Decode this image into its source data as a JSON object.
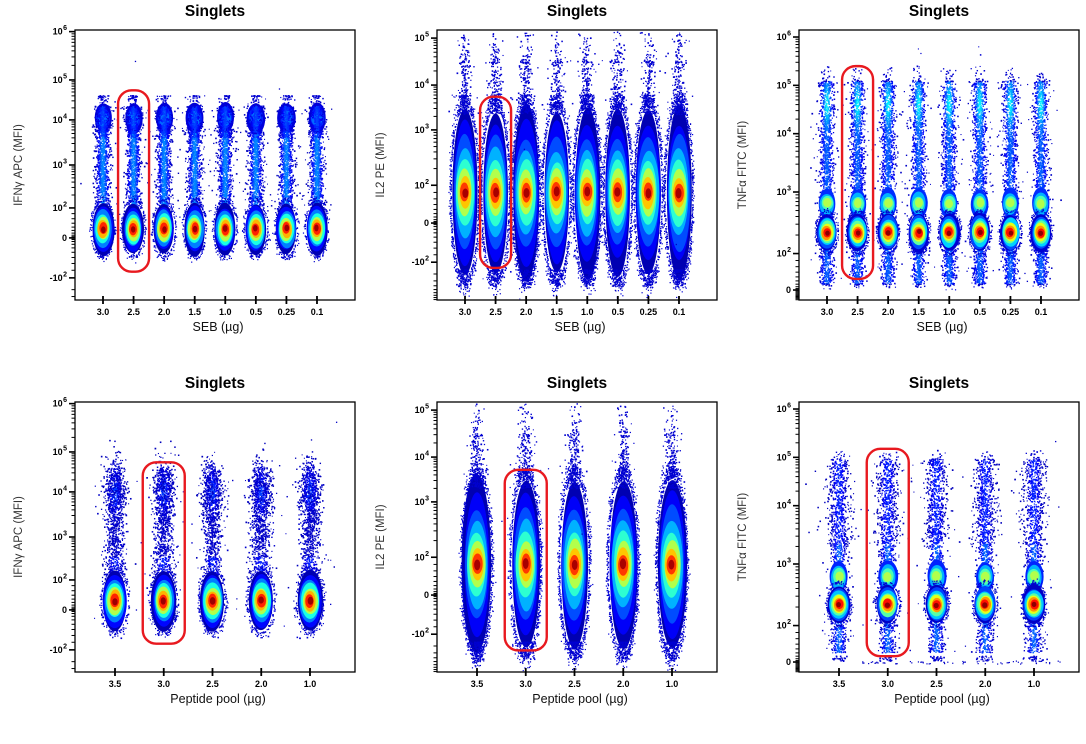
{
  "figure": {
    "background": "#ffffff",
    "plot_type": "flow-cytometry pseudocolor density plots",
    "colormap": "jet",
    "dot_color_low": "#0000c8",
    "gate_color": "#e8191f",
    "repeated_title": "Singlets"
  },
  "chart_data": [
    {
      "id": "top-left",
      "type": "density-scatter",
      "title": "Singlets",
      "xlabel": "SEB (µg)",
      "ylabel": "IFNγ APC (MFI)",
      "x_scale": "categorical",
      "x_ticks": [
        "3.0",
        "2.5",
        "2.0",
        "1.5",
        "1.0",
        "0.5",
        "0.25",
        "0.1"
      ],
      "y_scale": "biexponential",
      "y_ticks": [
        "10^6",
        "10^5",
        "10^4",
        "10^3",
        "10^2",
        "0",
        "-10^2"
      ],
      "y_anchors": [
        [
          1000000,
          0.006
        ],
        [
          100000,
          0.185
        ],
        [
          10000,
          0.333
        ],
        [
          1000,
          0.5
        ],
        [
          100,
          0.659
        ],
        [
          0,
          0.77
        ],
        [
          -100,
          0.918
        ]
      ],
      "gate": {
        "x_tick": "2.5",
        "y_top": 55000,
        "y_bottom": -92
      },
      "population": {
        "profile": "ifng-seb",
        "main_peak_mfi": 55,
        "upper_cluster_mfi": 11000,
        "dense_top": 22000,
        "dense_bottom": -25,
        "sparse_top": 40000
      }
    },
    {
      "id": "top-middle",
      "type": "density-scatter",
      "title": "Singlets",
      "xlabel": "SEB (µg)",
      "ylabel": "IL2 PE (MFI)",
      "x_scale": "categorical",
      "x_ticks": [
        "3.0",
        "2.5",
        "2.0",
        "1.5",
        "1.0",
        "0.5",
        "0.25",
        "0.1"
      ],
      "y_scale": "biexponential",
      "y_ticks": [
        "10^5",
        "10^4",
        "10^3",
        "10^2",
        "0",
        "-10^2"
      ],
      "y_anchors": [
        [
          100000,
          0.03
        ],
        [
          10000,
          0.204
        ],
        [
          1000,
          0.37
        ],
        [
          100,
          0.575
        ],
        [
          0,
          0.715
        ],
        [
          -100,
          0.86
        ]
      ],
      "gate": {
        "x_tick": "2.5",
        "y_top": 5500,
        "y_bottom": -140
      },
      "population": {
        "profile": "il2-seb",
        "main_peak_mfi": 90,
        "dense_top": 2200,
        "sparse_top": 140000,
        "sparse_bottom": -420
      }
    },
    {
      "id": "top-right",
      "type": "density-scatter",
      "title": "Singlets",
      "xlabel": "SEB (µg)",
      "ylabel": "TNFα FITC (MFI)",
      "x_scale": "categorical",
      "x_ticks": [
        "3.0",
        "2.5",
        "2.0",
        "1.5",
        "1.0",
        "0.5",
        "0.25",
        "0.1"
      ],
      "y_scale": "biexponential",
      "y_ticks": [
        "10^6",
        "10^5",
        "10^4",
        "10^3",
        "10^2",
        "0"
      ],
      "y_anchors": [
        [
          1000000,
          0.026
        ],
        [
          100000,
          0.205
        ],
        [
          10000,
          0.384
        ],
        [
          1000,
          0.6
        ],
        [
          100,
          0.828
        ],
        [
          0,
          0.963
        ]
      ],
      "gate": {
        "x_tick": "2.5",
        "y_top": 250000,
        "y_bottom": 55
      },
      "population": {
        "profile": "tnfa-seb",
        "main_peak_mfi": 220,
        "secondary_peak_mfi": 650,
        "upper_cloud_mfi": 40000,
        "dense_top": 120000,
        "dense_bottom": 40,
        "sparse_top": 250000
      }
    },
    {
      "id": "bottom-left",
      "type": "density-scatter",
      "title": "Singlets",
      "xlabel": "Peptide pool (µg)",
      "ylabel": "IFNγ APC (MFI)",
      "x_scale": "categorical",
      "x_ticks": [
        "3.5",
        "3.0",
        "2.5",
        "2.0",
        "1.0"
      ],
      "y_scale": "biexponential",
      "y_ticks": [
        "10^6",
        "10^5",
        "10^4",
        "10^3",
        "10^2",
        "0",
        "-10^2"
      ],
      "y_anchors": [
        [
          1000000,
          0.006
        ],
        [
          100000,
          0.185
        ],
        [
          10000,
          0.333
        ],
        [
          1000,
          0.5
        ],
        [
          100,
          0.659
        ],
        [
          0,
          0.77
        ],
        [
          -100,
          0.918
        ]
      ],
      "gate": {
        "x_tick": "3.0",
        "y_top": 55000,
        "y_bottom": -92
      },
      "population": {
        "profile": "ifng-pep",
        "main_peak_mfi": 55,
        "upper_cluster_mfi": 9500,
        "dense_top": 26000,
        "dense_bottom": -40,
        "sparse_top": 45000
      }
    },
    {
      "id": "bottom-middle",
      "type": "density-scatter",
      "title": "Singlets",
      "xlabel": "Peptide pool (µg)",
      "ylabel": "IL2 PE (MFI)",
      "x_scale": "categorical",
      "x_ticks": [
        "3.5",
        "3.0",
        "2.5",
        "2.0",
        "1.0"
      ],
      "y_scale": "biexponential",
      "y_ticks": [
        "10^5",
        "10^4",
        "10^3",
        "10^2",
        "0",
        "-10^2"
      ],
      "y_anchors": [
        [
          100000,
          0.03
        ],
        [
          10000,
          0.204
        ],
        [
          1000,
          0.37
        ],
        [
          100,
          0.575
        ],
        [
          0,
          0.715
        ],
        [
          -100,
          0.86
        ]
      ],
      "gate": {
        "x_tick": "3.0",
        "y_top": 5200,
        "y_bottom": -260
      },
      "population": {
        "profile": "il2-pep",
        "main_peak_mfi": 90,
        "dense_top": 2200,
        "sparse_top": 140000,
        "sparse_bottom": -450
      }
    },
    {
      "id": "bottom-right",
      "type": "density-scatter",
      "title": "Singlets",
      "xlabel": "Peptide pool (µg)",
      "ylabel": "TNFα FITC (MFI)",
      "x_scale": "categorical",
      "x_ticks": [
        "3.5",
        "3.0",
        "2.5",
        "2.0",
        "1.0"
      ],
      "y_scale": "biexponential",
      "y_ticks": [
        "10^6",
        "10^5",
        "10^4",
        "10^3",
        "10^2",
        "0"
      ],
      "y_anchors": [
        [
          1000000,
          0.026
        ],
        [
          100000,
          0.205
        ],
        [
          10000,
          0.384
        ],
        [
          1000,
          0.6
        ],
        [
          100,
          0.828
        ],
        [
          0,
          0.963
        ]
      ],
      "gate": {
        "x_tick": "3.0",
        "y_top": 150000,
        "y_bottom": 40
      },
      "population": {
        "profile": "tnfa-pep",
        "main_peak_mfi": 220,
        "secondary_peak_mfi": 620,
        "dense_top": 90000,
        "dense_bottom": 50,
        "sparse_top": 140000
      }
    }
  ]
}
